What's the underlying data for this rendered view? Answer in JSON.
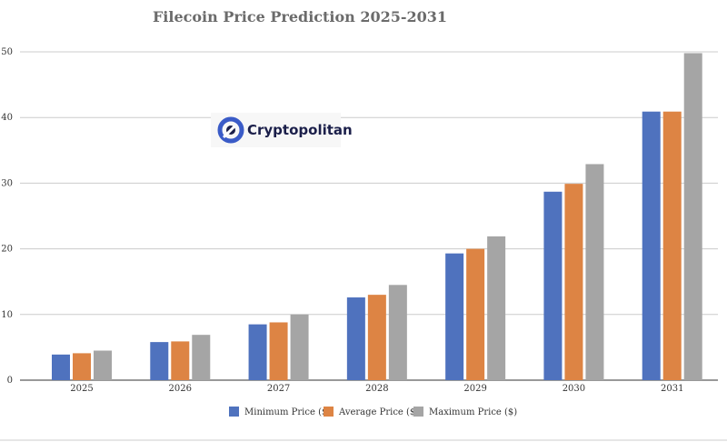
{
  "chart_data": {
    "type": "bar",
    "title": "Filecoin Price Prediction 2025-2031",
    "xlabel": "",
    "ylabel": "",
    "categories": [
      "2025",
      "2026",
      "2027",
      "2028",
      "2029",
      "2030",
      "2031"
    ],
    "series": [
      {
        "name": "Minimum Price ($)",
        "color": "#4f72be",
        "values": [
          3.9,
          5.8,
          8.5,
          12.6,
          19.3,
          28.7,
          40.9
        ]
      },
      {
        "name": "Average Price ($)",
        "color": "#dd8444",
        "values": [
          4.1,
          5.9,
          8.8,
          13.0,
          20.0,
          29.9,
          40.9
        ]
      },
      {
        "name": "Maximum Price ($)",
        "color": "#a5a5a5",
        "values": [
          4.5,
          6.9,
          10.0,
          14.5,
          21.9,
          32.9,
          49.8
        ]
      }
    ],
    "ylim": [
      0,
      50
    ],
    "yticks": [
      0,
      10,
      20,
      30,
      40,
      50
    ],
    "grid": true,
    "legend_position": "bottom"
  },
  "watermark": {
    "text": "Cryptopolitan",
    "icon": "cryptopolitan-logo-icon",
    "color": "#3a5bc7"
  }
}
